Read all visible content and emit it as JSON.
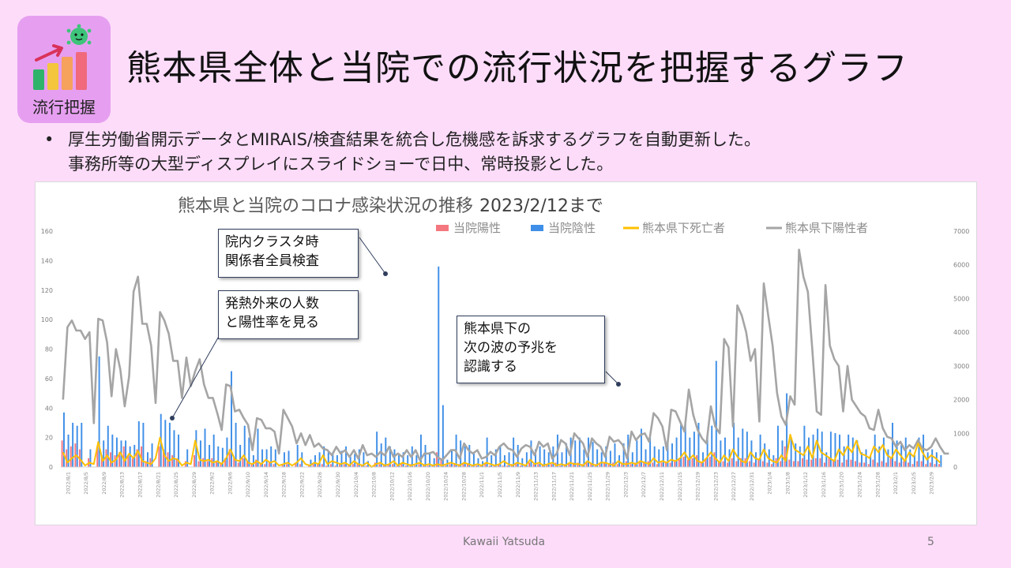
{
  "badge": {
    "label": "流行把握",
    "icon": "chart-virus-icon"
  },
  "title": "熊本県全体と当院での流行状況を把握するグラフ",
  "bullet": {
    "marker": "•",
    "line1": "厚生労働省開示データとMIRAIS/検査結果を統合し危機感を訴求するグラフを自動更新した。",
    "line2": "事務所等の大型ディスプレイにスライドショーで日中、常時投影とした。"
  },
  "footer": {
    "author": "Kawaii Yatsuda",
    "page": "5"
  },
  "colors": {
    "background": "#fddcfa",
    "badge": "#e69ff0",
    "positive": "#f4777f",
    "negative": "#3f8fe8",
    "deaths": "#ffc000",
    "pref_positive": "#a5a5a5"
  },
  "chart_data": {
    "type": "bar+line",
    "title": "熊本県と当院のコロナ感染状況の推移",
    "title_date": "2023/2/12まで",
    "legend": {
      "placement": "top-right",
      "items": [
        "当院陽性",
        "当院陰性",
        "熊本県下死亡者",
        "熊本県下陽性者"
      ]
    },
    "y_left": {
      "range": [
        0,
        160
      ],
      "ticks": [
        "0",
        "20",
        "40",
        "60",
        "80",
        "100",
        "120",
        "140",
        "160"
      ]
    },
    "y_right": {
      "range": [
        0,
        7000
      ],
      "ticks": [
        "0",
        "1000",
        "2000",
        "3000",
        "4000",
        "5000",
        "6000",
        "7000"
      ]
    },
    "x_ticks": [
      "2022/8/1",
      "2022/8/5",
      "2022/8/9",
      "2022/8/13",
      "2022/8/17",
      "2022/8/21",
      "2022/8/25",
      "2022/8/29",
      "2022/9/2",
      "2022/9/6",
      "2022/9/10",
      "2022/9/14",
      "2022/9/18",
      "2022/9/22",
      "2022/9/26",
      "2022/9/30",
      "2022/10/4",
      "2022/10/8",
      "2022/10/12",
      "2022/10/16",
      "2022/10/20",
      "2022/10/24",
      "2022/10/28",
      "2022/11/1",
      "2022/11/5",
      "2022/11/9",
      "2022/11/13",
      "2022/11/17",
      "2022/11/21",
      "2022/11/25",
      "2022/11/29",
      "2022/12/3",
      "2022/12/7",
      "2022/12/11",
      "2022/12/15",
      "2022/12/19",
      "2022/12/23",
      "2022/12/27",
      "2022/12/31",
      "2023/1/4",
      "2023/1/8",
      "2023/1/12",
      "2023/1/16",
      "2023/1/20",
      "2023/1/24",
      "2023/1/28",
      "2023/2/1",
      "2023/2/5",
      "2023/2/9"
    ],
    "series": [
      {
        "name": "当院陰性",
        "axis": "left",
        "type": "bar",
        "values": [
          37,
          22,
          30,
          28,
          30,
          0,
          12,
          0,
          75,
          18,
          28,
          22,
          20,
          18,
          18,
          14,
          15,
          31,
          30,
          10,
          16,
          0,
          36,
          32,
          30,
          25,
          22,
          0,
          12,
          0,
          25,
          18,
          26,
          15,
          22,
          14,
          13,
          20,
          65,
          30,
          15,
          28,
          20,
          8,
          26,
          12,
          12,
          14,
          12,
          0,
          10,
          11,
          0,
          15,
          10,
          0,
          5,
          8,
          10,
          14,
          10,
          10,
          8,
          11,
          14,
          7,
          9,
          12,
          10,
          4,
          0,
          24,
          16,
          20,
          14,
          12,
          8,
          10,
          8,
          14,
          8,
          22,
          15,
          10,
          6,
          136,
          42,
          5,
          12,
          22,
          18,
          14,
          15,
          10,
          6,
          4,
          20,
          8,
          12,
          14,
          8,
          10,
          20,
          15,
          6,
          10,
          18,
          12,
          14,
          12,
          10,
          14,
          22,
          10,
          16,
          20,
          18,
          20,
          12,
          20,
          17,
          12,
          10,
          14,
          11,
          16,
          8,
          16,
          22,
          10,
          18,
          26,
          12,
          20,
          14,
          12,
          14,
          17,
          16,
          20,
          30,
          30,
          20,
          24,
          30,
          10,
          22,
          28,
          72,
          18,
          20,
          12,
          30,
          20,
          26,
          24,
          18,
          10,
          22,
          16,
          12,
          8,
          28,
          18,
          50,
          20,
          16,
          14,
          28,
          20,
          22,
          26,
          24,
          10,
          24,
          23,
          22,
          14,
          22,
          20,
          18,
          10,
          12,
          8,
          22,
          14,
          20,
          12,
          30,
          18,
          15,
          20,
          12,
          8,
          20,
          22,
          10,
          12,
          10,
          8
        ]
      },
      {
        "name": "当院陽性",
        "axis": "left",
        "type": "bar",
        "values": [
          18,
          12,
          14,
          16,
          12,
          0,
          6,
          0,
          14,
          8,
          12,
          10,
          8,
          10,
          14,
          8,
          6,
          12,
          14,
          4,
          6,
          0,
          14,
          12,
          10,
          8,
          6,
          0,
          4,
          0,
          8,
          4,
          6,
          4,
          6,
          4,
          3,
          6,
          12,
          6,
          3,
          6,
          4,
          2,
          5,
          2,
          2,
          3,
          2,
          0,
          2,
          2,
          0,
          3,
          2,
          0,
          1,
          2,
          2,
          2,
          1,
          2,
          1,
          2,
          2,
          1,
          2,
          2,
          1,
          1,
          0,
          3,
          2,
          2,
          2,
          2,
          1,
          2,
          1,
          2,
          1,
          2,
          2,
          1,
          1,
          10,
          6,
          1,
          2,
          2,
          2,
          2,
          2,
          1,
          1,
          1,
          2,
          1,
          1,
          2,
          1,
          1,
          2,
          2,
          1,
          1,
          3,
          2,
          2,
          2,
          2,
          2,
          3,
          1,
          2,
          3,
          3,
          3,
          2,
          3,
          3,
          2,
          2,
          3,
          2,
          3,
          2,
          3,
          4,
          2,
          3,
          4,
          3,
          4,
          3,
          2,
          3,
          3,
          3,
          4,
          6,
          7,
          5,
          6,
          8,
          3,
          6,
          7,
          10,
          4,
          4,
          3,
          6,
          4,
          6,
          6,
          4,
          3,
          5,
          4,
          3,
          2,
          6,
          4,
          14,
          5,
          4,
          4,
          6,
          5,
          5,
          6,
          6,
          3,
          6,
          5,
          5,
          3,
          5,
          5,
          4,
          3,
          3,
          2,
          5,
          3,
          4,
          3,
          6,
          4,
          3,
          4,
          3,
          2,
          4,
          4,
          2,
          3,
          2,
          2
        ]
      },
      {
        "name": "熊本県下死亡者",
        "axis": "left",
        "type": "line",
        "values": [
          10,
          3,
          6,
          8,
          5,
          1,
          3,
          2,
          17,
          4,
          8,
          3,
          5,
          10,
          4,
          9,
          6,
          11,
          4,
          3,
          2,
          6,
          20,
          8,
          4,
          6,
          5,
          1,
          3,
          2,
          18,
          5,
          4,
          5,
          3,
          4,
          2,
          6,
          12,
          5,
          4,
          8,
          3,
          2,
          4,
          2,
          5,
          3,
          4,
          1,
          2,
          3,
          1,
          3,
          6,
          2,
          1,
          3,
          2,
          8,
          2,
          4,
          3,
          2,
          3,
          1,
          4,
          2,
          1,
          3,
          0,
          2,
          3,
          1,
          2,
          4,
          1,
          3,
          2,
          1,
          2,
          3,
          1,
          2,
          1,
          2,
          1,
          2,
          3,
          2,
          1,
          3,
          2,
          1,
          2,
          1,
          3,
          2,
          1,
          2,
          4,
          2,
          1,
          3,
          2,
          1,
          5,
          2,
          3,
          1,
          2,
          3,
          1,
          2,
          1,
          3,
          2,
          2,
          1,
          4,
          2,
          1,
          3,
          3,
          2,
          1,
          4,
          2,
          2,
          3,
          2,
          4,
          3,
          2,
          6,
          3,
          4,
          3,
          5,
          4,
          6,
          10,
          5,
          8,
          4,
          3,
          6,
          10,
          6,
          3,
          8,
          4,
          12,
          7,
          4,
          3,
          10,
          6,
          5,
          12,
          6,
          4,
          3,
          8,
          4,
          22,
          12,
          10,
          8,
          14,
          6,
          18,
          10,
          8,
          6,
          4,
          12,
          8,
          14,
          10,
          18,
          9,
          8,
          6,
          14,
          10,
          15,
          8,
          6,
          12,
          8,
          4,
          10,
          7,
          16,
          10,
          5,
          8,
          6,
          3
        ]
      },
      {
        "name": "熊本県下陽性者",
        "axis": "right",
        "type": "line",
        "values": [
          2000,
          4150,
          4350,
          4050,
          4050,
          3800,
          4000,
          1300,
          4400,
          4350,
          3700,
          2100,
          3500,
          2900,
          1800,
          2700,
          5200,
          5650,
          4250,
          4250,
          3600,
          1900,
          4600,
          4350,
          3950,
          3150,
          3150,
          2050,
          3250,
          2400,
          2850,
          3200,
          2450,
          2050,
          2050,
          1600,
          1100,
          2450,
          2400,
          1650,
          1700,
          1450,
          1250,
          500,
          1450,
          1400,
          1150,
          1150,
          1050,
          400,
          1700,
          1450,
          1200,
          700,
          1000,
          650,
          950,
          600,
          700,
          550,
          500,
          350,
          600,
          400,
          500,
          300,
          500,
          250,
          650,
          350,
          400,
          300,
          450,
          350,
          600,
          300,
          400,
          300,
          500,
          300,
          500,
          200,
          400,
          400,
          450,
          300,
          200,
          350,
          500,
          500,
          250,
          700,
          500,
          400,
          500,
          250,
          300,
          450,
          350,
          600,
          700,
          550,
          500,
          300,
          550,
          650,
          600,
          350,
          750,
          600,
          700,
          250,
          400,
          800,
          700,
          350,
          1000,
          850,
          700,
          300,
          850,
          700,
          600,
          300,
          900,
          750,
          800,
          650,
          250,
          1050,
          800,
          950,
          1000,
          750,
          1600,
          1450,
          1200,
          500,
          1700,
          1650,
          1350,
          1050,
          2300,
          1550,
          1100,
          850,
          700,
          1800,
          1200,
          1000,
          3800,
          3550,
          1200,
          4800,
          4500,
          4000,
          3150,
          3500,
          1350,
          5450,
          4500,
          3600,
          2200,
          1500,
          1250,
          2100,
          1850,
          6450,
          5650,
          5200,
          3500,
          1650,
          1550,
          5400,
          3600,
          3200,
          3000,
          1650,
          3000,
          2000,
          1800,
          1600,
          1500,
          1150,
          1100,
          1700,
          1150,
          900,
          850,
          600,
          750,
          500,
          650,
          550,
          800,
          550,
          500,
          600,
          850,
          600,
          400,
          400
        ]
      }
    ],
    "annotations": [
      {
        "name": "cluster",
        "text": "院内クラスタ時\n関係者全員検査"
      },
      {
        "name": "fever",
        "text": "発熱外来の人数\nと陽性率を見る"
      },
      {
        "name": "next-wave",
        "text": "熊本県下の\n次の波の予兆を\n認識する"
      }
    ]
  }
}
